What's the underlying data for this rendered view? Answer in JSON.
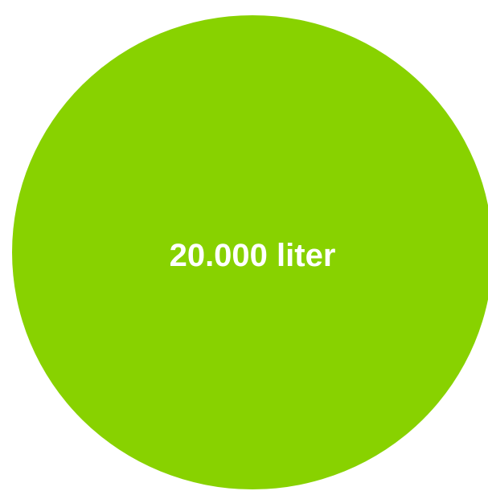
{
  "volume_circle": {
    "label": "20.000 liter",
    "color": "#88d200",
    "text_color": "#ffffff"
  }
}
